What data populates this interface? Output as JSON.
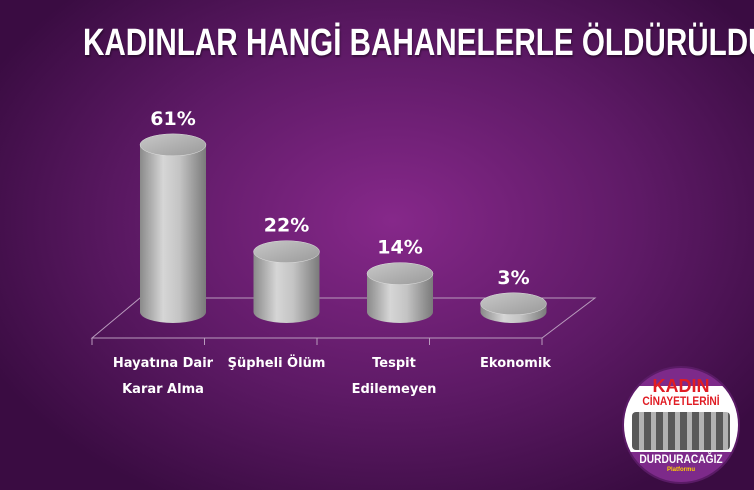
{
  "chart_data": {
    "type": "bar",
    "style": "3d-cylinder",
    "title": "KADINLAR HANGİ BAHANELERLE ÖLDÜRÜLDÜ?",
    "categories": [
      [
        "Hayatına Dair",
        "Karar Alma"
      ],
      [
        "Şüpheli Ölüm"
      ],
      [
        "Tespit",
        "Edilemeyen"
      ],
      [
        "Ekonomik"
      ]
    ],
    "values": [
      61,
      22,
      14,
      3
    ],
    "data_labels": [
      "61%",
      "22%",
      "14%",
      "3%"
    ],
    "unit": "%",
    "grid": false,
    "legend": "none",
    "colors": {
      "bar": "#b8b8b8",
      "background": "#6e1f78",
      "floor_line": "#b99bbd"
    }
  },
  "logo": {
    "line1": "KADIN",
    "line2": "CİNAYETLERİNİ",
    "line3": "DURDURACAĞIZ",
    "line4": "Platformu"
  }
}
